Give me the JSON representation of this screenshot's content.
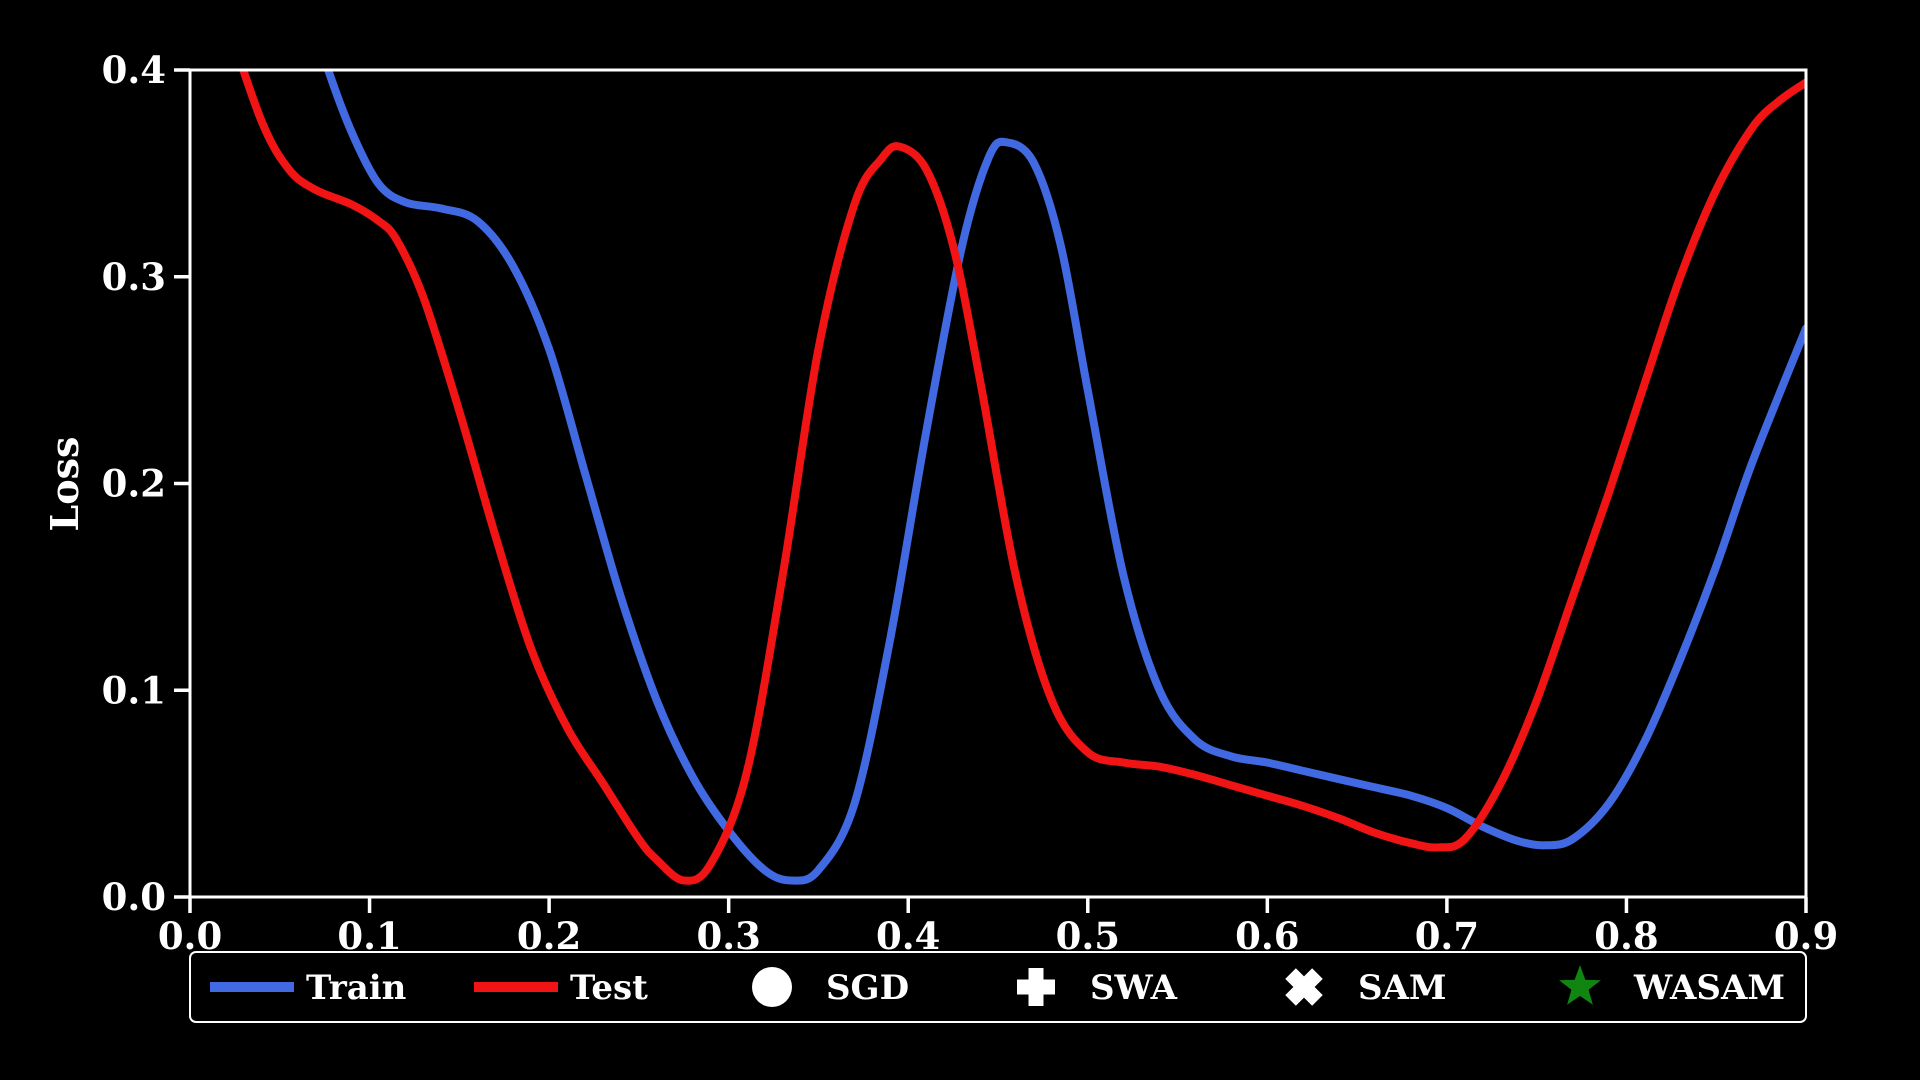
{
  "chart_data": {
    "type": "line",
    "title": "",
    "xlabel": "",
    "ylabel": "Loss",
    "xlim": [
      0.0,
      0.9
    ],
    "ylim": [
      0.0,
      0.4
    ],
    "x_ticks": [
      "0.0",
      "0.1",
      "0.2",
      "0.3",
      "0.4",
      "0.5",
      "0.6",
      "0.7",
      "0.8",
      "0.9"
    ],
    "y_ticks": [
      "0.0",
      "0.1",
      "0.2",
      "0.3",
      "0.4"
    ],
    "grid": false,
    "background_color": "#000000",
    "axis_color": "#ffffff",
    "legend_position": "bottom",
    "series": [
      {
        "name": "Train",
        "color": "#4169e1",
        "x": [
          0.055,
          0.075,
          0.09,
          0.105,
          0.12,
          0.14,
          0.16,
          0.18,
          0.2,
          0.22,
          0.24,
          0.26,
          0.28,
          0.3,
          0.32,
          0.335,
          0.35,
          0.37,
          0.39,
          0.41,
          0.43,
          0.445,
          0.455,
          0.47,
          0.485,
          0.5,
          0.52,
          0.54,
          0.56,
          0.58,
          0.6,
          0.62,
          0.64,
          0.66,
          0.68,
          0.7,
          0.72,
          0.74,
          0.755,
          0.77,
          0.79,
          0.81,
          0.83,
          0.85,
          0.87,
          0.9
        ],
        "y": [
          0.46,
          0.405,
          0.37,
          0.345,
          0.336,
          0.333,
          0.327,
          0.305,
          0.265,
          0.205,
          0.145,
          0.095,
          0.058,
          0.032,
          0.013,
          0.008,
          0.013,
          0.045,
          0.125,
          0.225,
          0.315,
          0.358,
          0.365,
          0.355,
          0.315,
          0.245,
          0.155,
          0.1,
          0.076,
          0.068,
          0.065,
          0.061,
          0.057,
          0.053,
          0.049,
          0.043,
          0.034,
          0.027,
          0.025,
          0.028,
          0.045,
          0.075,
          0.115,
          0.16,
          0.21,
          0.275
        ]
      },
      {
        "name": "Test",
        "color": "#f01414",
        "x": [
          0.0,
          0.02,
          0.04,
          0.055,
          0.07,
          0.09,
          0.105,
          0.115,
          0.13,
          0.15,
          0.17,
          0.19,
          0.21,
          0.23,
          0.25,
          0.26,
          0.275,
          0.29,
          0.31,
          0.33,
          0.35,
          0.37,
          0.385,
          0.395,
          0.41,
          0.425,
          0.44,
          0.46,
          0.48,
          0.5,
          0.52,
          0.54,
          0.56,
          0.58,
          0.6,
          0.62,
          0.64,
          0.66,
          0.68,
          0.695,
          0.71,
          0.73,
          0.75,
          0.77,
          0.79,
          0.81,
          0.83,
          0.85,
          0.87,
          0.885,
          0.9
        ],
        "y": [
          0.475,
          0.425,
          0.375,
          0.352,
          0.342,
          0.335,
          0.327,
          0.318,
          0.29,
          0.235,
          0.175,
          0.12,
          0.082,
          0.055,
          0.028,
          0.018,
          0.008,
          0.016,
          0.06,
          0.155,
          0.265,
          0.335,
          0.357,
          0.363,
          0.352,
          0.315,
          0.25,
          0.155,
          0.095,
          0.07,
          0.065,
          0.063,
          0.059,
          0.054,
          0.049,
          0.044,
          0.038,
          0.031,
          0.026,
          0.024,
          0.028,
          0.055,
          0.095,
          0.145,
          0.195,
          0.248,
          0.3,
          0.342,
          0.372,
          0.385,
          0.394
        ]
      }
    ],
    "legend": {
      "entries": [
        {
          "label": "Train",
          "marker": "line",
          "color": "#4169e1"
        },
        {
          "label": "Test",
          "marker": "line",
          "color": "#f01414"
        },
        {
          "label": "SGD",
          "marker": "circle",
          "color": "#ffffff"
        },
        {
          "label": "SWA",
          "marker": "plus",
          "color": "#ffffff"
        },
        {
          "label": "SAM",
          "marker": "x",
          "color": "#ffffff"
        },
        {
          "label": "WASAM",
          "marker": "star",
          "color": "#118511"
        }
      ]
    }
  }
}
